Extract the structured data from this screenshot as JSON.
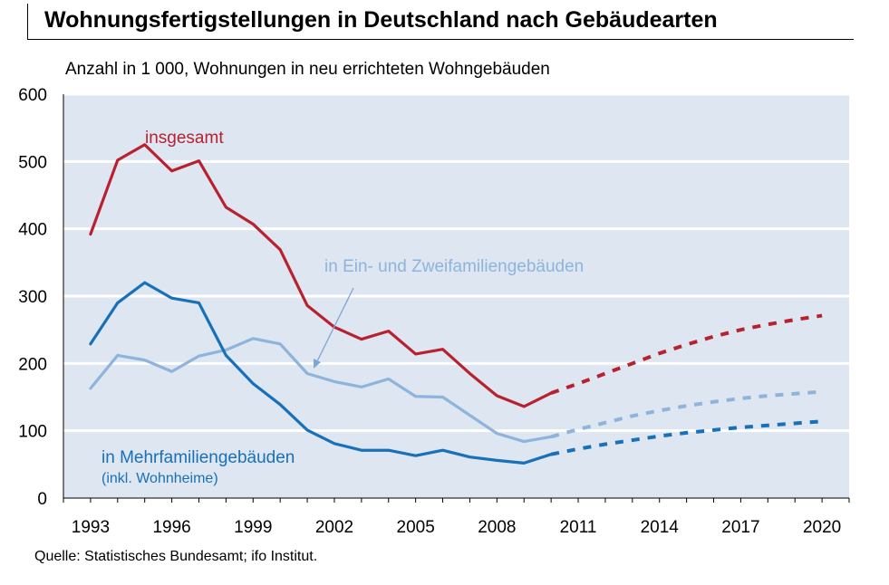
{
  "header": {
    "title": "Wohnungsfertigstellungen in Deutschland nach Gebäudearten",
    "subtitle": "Anzahl in 1 000,  Wohnungen in neu errichteten Wohngebäuden",
    "source": "Quelle: Statistisches Bundesamt; ifo Institut."
  },
  "chart_data": {
    "type": "line",
    "title": "Wohnungsfertigstellungen in Deutschland nach Gebäudearten",
    "subtitle": "Anzahl in 1 000,  Wohnungen in neu errichteten Wohngebäuden",
    "xlim": [
      1992,
      2021
    ],
    "ylim": [
      0,
      600
    ],
    "x_ticks": [
      "1993",
      "1996",
      "1999",
      "2002",
      "2005",
      "2008",
      "2011",
      "2014",
      "2017",
      "2020"
    ],
    "y_ticks": [
      "0",
      "100",
      "200",
      "300",
      "400",
      "500",
      "600"
    ],
    "grid": true,
    "background_color": "#dde6f1",
    "series": [
      {
        "name": "insgesamt",
        "color": "#b8212f",
        "label": "insgesamt",
        "x": [
          1993,
          1994,
          1995,
          1996,
          1997,
          1998,
          1999,
          2000,
          2001,
          2002,
          2003,
          2004,
          2005,
          2006,
          2007,
          2008,
          2009,
          2010
        ],
        "y": [
          392,
          502,
          525,
          486,
          501,
          432,
          407,
          369,
          286,
          254,
          236,
          248,
          214,
          221,
          185,
          152,
          136,
          156
        ],
        "forecast_x": [
          2010,
          2011,
          2012,
          2013,
          2014,
          2015,
          2016,
          2017,
          2018,
          2019,
          2020
        ],
        "forecast_y": [
          156,
          170,
          185,
          200,
          215,
          228,
          240,
          250,
          258,
          265,
          271
        ]
      },
      {
        "name": "in Ein- und Zweifamiliengebäuden",
        "color": "#8fb4dc",
        "label": "in Ein- und Zweifamiliengebäuden",
        "x": [
          1993,
          1994,
          1995,
          1996,
          1997,
          1998,
          1999,
          2000,
          2001,
          2002,
          2003,
          2004,
          2005,
          2006,
          2007,
          2008,
          2009,
          2010
        ],
        "y": [
          163,
          212,
          205,
          188,
          211,
          220,
          237,
          229,
          185,
          173,
          165,
          177,
          151,
          150,
          123,
          96,
          84,
          91
        ],
        "forecast_x": [
          2010,
          2011,
          2012,
          2013,
          2014,
          2015,
          2016,
          2017,
          2018,
          2019,
          2020
        ],
        "forecast_y": [
          91,
          102,
          112,
          122,
          130,
          137,
          143,
          148,
          152,
          155,
          158
        ]
      },
      {
        "name": "in Mehrfamiliengebäuden",
        "color": "#1870b8",
        "label": "in Mehrfamiliengebäuden",
        "sublabel": "(inkl. Wohnheime)",
        "x": [
          1993,
          1994,
          1995,
          1996,
          1997,
          1998,
          1999,
          2000,
          2001,
          2002,
          2003,
          2004,
          2005,
          2006,
          2007,
          2008,
          2009,
          2010
        ],
        "y": [
          229,
          290,
          320,
          297,
          290,
          212,
          170,
          139,
          101,
          81,
          71,
          71,
          63,
          71,
          61,
          56,
          52,
          65
        ],
        "forecast_x": [
          2010,
          2011,
          2012,
          2013,
          2014,
          2015,
          2016,
          2017,
          2018,
          2019,
          2020
        ],
        "forecast_y": [
          65,
          73,
          80,
          86,
          92,
          97,
          101,
          105,
          108,
          111,
          114
        ]
      }
    ]
  }
}
